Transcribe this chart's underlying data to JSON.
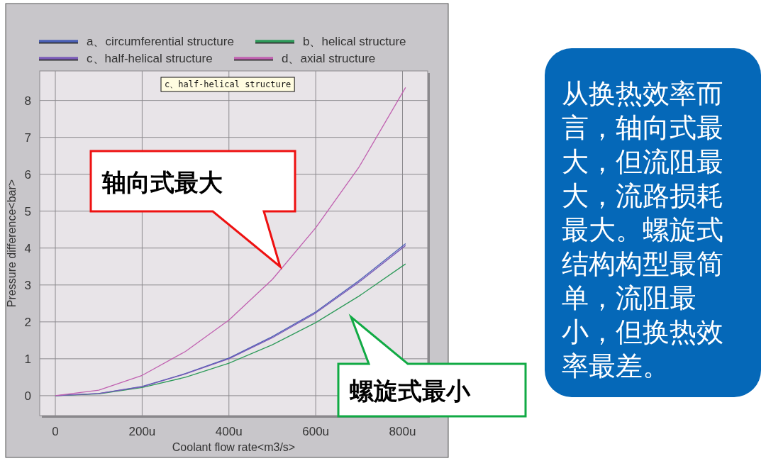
{
  "chart_data": {
    "type": "line",
    "xlabel": "Coolant flow rate<m3/s>",
    "ylabel": "Pressure difference<bar>",
    "xlim": [
      -36,
      858
    ],
    "ylim": [
      -0.54,
      8.8
    ],
    "xticks": [
      0,
      {
        "value": 200,
        "label": "200u"
      },
      {
        "value": 400,
        "label": "400u"
      },
      {
        "value": 600,
        "label": "600u"
      },
      {
        "value": 800,
        "label": "800u"
      }
    ],
    "yticks": [
      0,
      1,
      2,
      3,
      4,
      5,
      6,
      7,
      8
    ],
    "grid": true,
    "legend": "top",
    "marker": "none",
    "line_style": "solid",
    "x": [
      0,
      100,
      200,
      300,
      400,
      500,
      600,
      700,
      807
    ],
    "series": [
      {
        "name": "a、circumferential structure",
        "color": "#4a5fb5",
        "values": [
          0,
          0.06,
          0.25,
          0.6,
          1.02,
          1.6,
          2.27,
          3.12,
          4.12
        ]
      },
      {
        "name": "b、helical structure",
        "color": "#2e9a5a",
        "values": [
          0,
          0.05,
          0.22,
          0.5,
          0.88,
          1.38,
          1.98,
          2.7,
          3.57
        ]
      },
      {
        "name": "c、half-helical structure",
        "color": "#7a5ab8",
        "values": [
          0,
          0.06,
          0.24,
          0.59,
          1.0,
          1.57,
          2.24,
          3.08,
          4.07
        ]
      },
      {
        "name": "d、axial structure",
        "color": "#c060b0",
        "values": [
          0,
          0.15,
          0.55,
          1.2,
          2.05,
          3.15,
          4.55,
          6.2,
          8.35
        ]
      }
    ],
    "annotations": [
      "c、half-helical structure",
      "轴向式最大",
      "螺旋式最小",
      "从换热效率而言，轴向式最大，但流阻最大，流路损耗最大。螺旋式结构构型最简单，流阻最小，但换热效率最差。"
    ]
  }
}
